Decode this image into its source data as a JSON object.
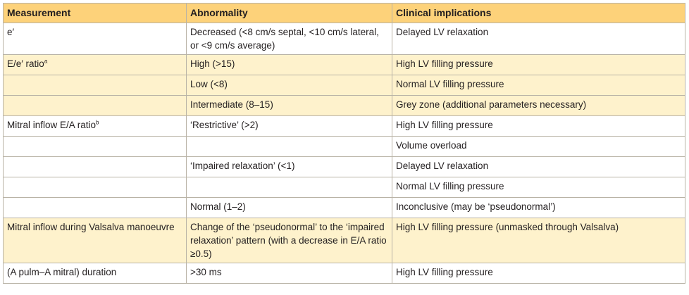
{
  "table": {
    "headers": [
      "Measurement",
      "Abnormality",
      "Clinical implications"
    ],
    "rows": [
      {
        "measurement": "e′",
        "sup": "",
        "abnormality": "Decreased (<8 cm/s septal, <10 cm/s lateral, or <9 cm/s average)",
        "implication": "Delayed LV relaxation",
        "shade": false
      },
      {
        "measurement": "E/e′ ratio",
        "sup": "a",
        "abnormality": "High (>15)",
        "implication": "High LV filling pressure",
        "shade": true
      },
      {
        "measurement": "",
        "sup": "",
        "abnormality": "Low (<8)",
        "implication": "Normal LV filling pressure",
        "shade": true
      },
      {
        "measurement": "",
        "sup": "",
        "abnormality": "Intermediate (8–15)",
        "implication": "Grey zone (additional parameters necessary)",
        "shade": true
      },
      {
        "measurement": "Mitral inflow E/A ratio",
        "sup": "b",
        "abnormality": "‘Restrictive’ (>2)",
        "implication": "High LV filling pressure",
        "shade": false
      },
      {
        "measurement": "",
        "sup": "",
        "abnormality": "",
        "implication": "Volume overload",
        "shade": false
      },
      {
        "measurement": "",
        "sup": "",
        "abnormality": "‘Impaired relaxation’ (<1)",
        "implication": "Delayed LV relaxation",
        "shade": false
      },
      {
        "measurement": "",
        "sup": "",
        "abnormality": "",
        "implication": "Normal LV filling pressure",
        "shade": false
      },
      {
        "measurement": "",
        "sup": "",
        "abnormality": "Normal (1–2)",
        "implication": "Inconclusive (may be ‘pseudonormal’)",
        "shade": false
      },
      {
        "measurement": "Mitral inflow during Valsalva manoeuvre",
        "sup": "",
        "abnormality": "Change of the ‘pseudonormal’ to the ‘impaired relaxation’ pattern (with a decrease in E/A ratio ≥0.5)",
        "implication": "High LV filling pressure (unmasked through Valsalva)",
        "shade": true
      },
      {
        "measurement": "(A pulm–A mitral) duration",
        "sup": "",
        "abnormality": ">30 ms",
        "implication": "High LV filling pressure",
        "shade": false
      }
    ]
  }
}
